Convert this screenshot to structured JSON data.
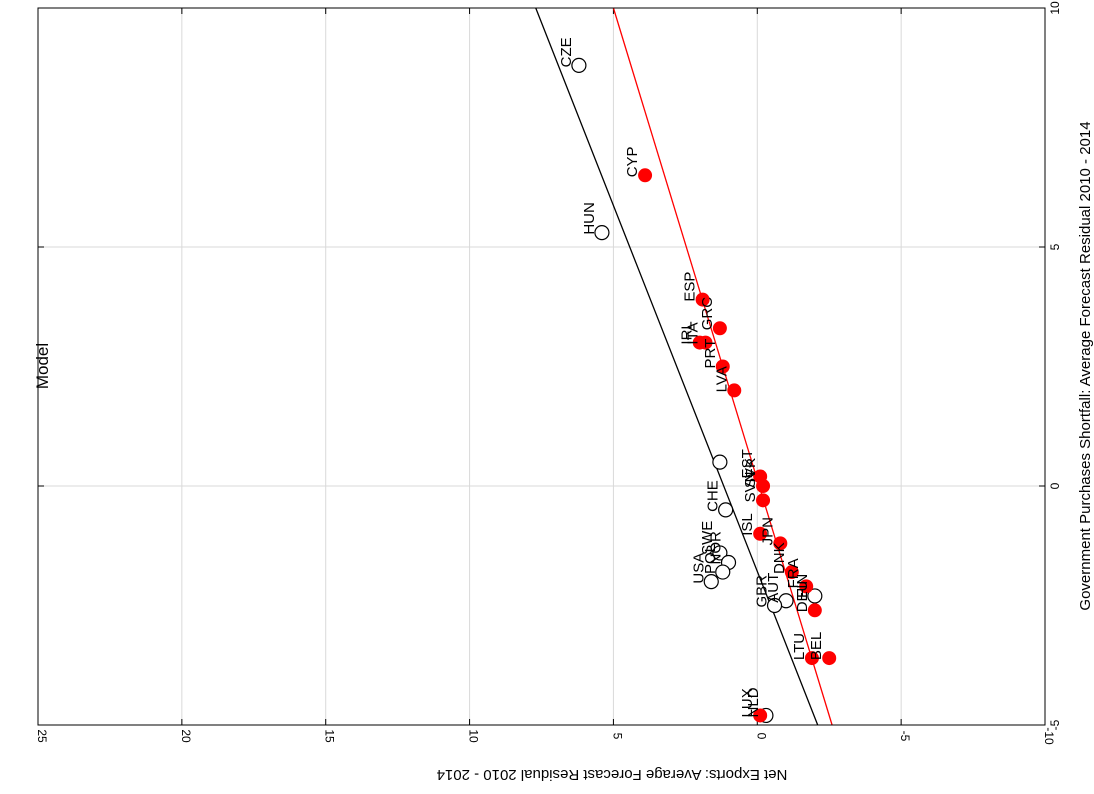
{
  "chart_data": {
    "type": "scatter",
    "title": "Model",
    "xlabel": "Government Purchases Shortfall: Average Forecast Residual 2010 - 2014",
    "ylabel": "Net Exports: Average Forecast Residual 2010 - 2014",
    "xlim": [
      -5,
      10
    ],
    "ylim": [
      -10,
      25
    ],
    "x_ticks": [
      "-5",
      "0",
      "5",
      "10"
    ],
    "y_ticks": [
      "-10",
      "-5",
      "0",
      "5",
      "10",
      "15",
      "20",
      "25"
    ],
    "grid": true,
    "series": [
      {
        "marker": "open-circle",
        "color": "#000000",
        "points": [
          {
            "label": "CZE",
            "x": 8.8,
            "y": 6.2
          },
          {
            "label": "HUN",
            "x": 5.3,
            "y": 5.4
          },
          {
            "label": "",
            "x": 0.5,
            "y": 1.3
          },
          {
            "label": "CHE",
            "x": -0.5,
            "y": 1.1
          },
          {
            "label": "SWE",
            "x": -1.4,
            "y": 1.3
          },
          {
            "label": "NOR",
            "x": -1.6,
            "y": 1.0
          },
          {
            "label": "POL",
            "x": -1.8,
            "y": 1.2
          },
          {
            "label": "USA",
            "x": -2.0,
            "y": 1.6
          },
          {
            "label": "AUT",
            "x": -2.4,
            "y": -1.0
          },
          {
            "label": "GBR",
            "x": -2.5,
            "y": -0.6
          },
          {
            "label": "FIN",
            "x": -2.3,
            "y": -2.0
          },
          {
            "label": "NLD",
            "x": -4.8,
            "y": -0.3
          }
        ]
      },
      {
        "marker": "filled-circle",
        "color": "#ff0000",
        "points": [
          {
            "label": "CYP",
            "x": 6.5,
            "y": 3.9
          },
          {
            "label": "ESP",
            "x": 3.9,
            "y": 1.9
          },
          {
            "label": "GRC",
            "x": 3.3,
            "y": 1.3
          },
          {
            "label": "ITA",
            "x": 3.0,
            "y": 1.8
          },
          {
            "label": "IRL",
            "x": 3.0,
            "y": 2.0
          },
          {
            "label": "PRT",
            "x": 2.5,
            "y": 1.2
          },
          {
            "label": "LVA",
            "x": 2.0,
            "y": 0.8
          },
          {
            "label": "EST",
            "x": 0.2,
            "y": -0.1
          },
          {
            "label": "SVK",
            "x": 0.0,
            "y": -0.2
          },
          {
            "label": "SVN",
            "x": -0.3,
            "y": -0.2
          },
          {
            "label": "ISL",
            "x": -1.0,
            "y": -0.1
          },
          {
            "label": "JPN",
            "x": -1.2,
            "y": -0.8
          },
          {
            "label": "DNK",
            "x": -1.8,
            "y": -1.2
          },
          {
            "label": "FRA",
            "x": -2.1,
            "y": -1.7
          },
          {
            "label": "DEU",
            "x": -2.6,
            "y": -2.0
          },
          {
            "label": "LTU",
            "x": -3.6,
            "y": -1.9
          },
          {
            "label": "BEL",
            "x": -3.6,
            "y": -2.5
          },
          {
            "label": "LUX",
            "x": -4.8,
            "y": -0.1
          }
        ]
      }
    ],
    "fit_lines": [
      {
        "color": "#000000",
        "x": [
          -5,
          10
        ],
        "y": [
          -2.1,
          7.7
        ]
      },
      {
        "color": "#ff0000",
        "x": [
          -5,
          10
        ],
        "y": [
          -2.6,
          5.0
        ]
      }
    ]
  }
}
